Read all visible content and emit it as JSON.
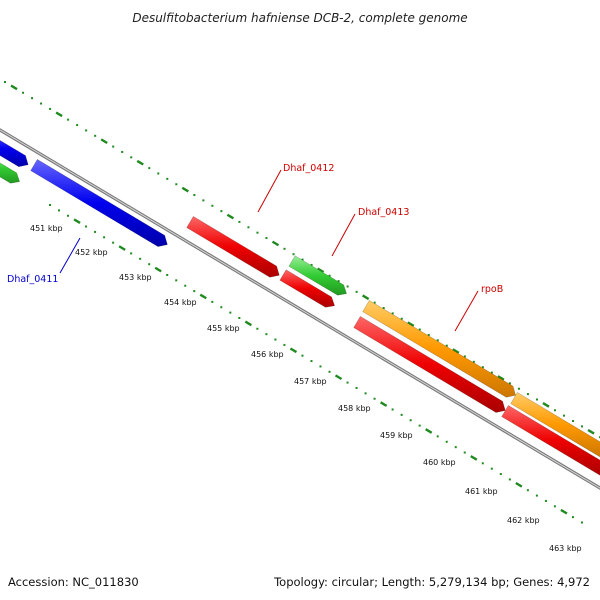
{
  "title": "Desulfitobacterium hafniense DCB-2, complete genome",
  "footer": {
    "accession": "Accession: NC_011830",
    "topology": "Topology: circular; Length: 5,279,134 bp; Genes: 4,972"
  },
  "colors": {
    "backbone": "#7a7a7a",
    "ticks": "#1f8a1f",
    "blue_gene": "#0000ee",
    "red_gene": "#ee0000",
    "green_gene": "#33cc33",
    "orange_gene": "#ff9900",
    "blue_label": "#0000cc",
    "red_label": "#cc0000"
  },
  "ticks": {
    "labels": [
      "451 kbp",
      "452 kbp",
      "453 kbp",
      "454 kbp",
      "455 kbp",
      "456 kbp",
      "457 kbp",
      "458 kbp",
      "459 kbp",
      "460 kbp",
      "461 kbp",
      "462 kbp",
      "463 kbp"
    ]
  },
  "genes": [
    {
      "id": "dhaf-0410",
      "color": "blue_gene",
      "label": ""
    },
    {
      "id": "dhaf-0410-green",
      "color": "green_gene",
      "label": ""
    },
    {
      "id": "dhaf-0411",
      "color": "blue_gene",
      "label": "Dhaf_0411"
    },
    {
      "id": "dhaf-0412",
      "color": "red_gene",
      "label": "Dhaf_0412"
    },
    {
      "id": "dhaf-0413",
      "color": "green_gene",
      "label": "Dhaf_0413"
    },
    {
      "id": "dhaf-0413-red",
      "color": "red_gene",
      "label": ""
    },
    {
      "id": "rpob",
      "color": "orange_gene",
      "label": "rpoB"
    },
    {
      "id": "rpob-red",
      "color": "red_gene",
      "label": ""
    },
    {
      "id": "rpoc-orange",
      "color": "orange_gene",
      "label": ""
    },
    {
      "id": "rpoc-red",
      "color": "red_gene",
      "label": ""
    }
  ]
}
